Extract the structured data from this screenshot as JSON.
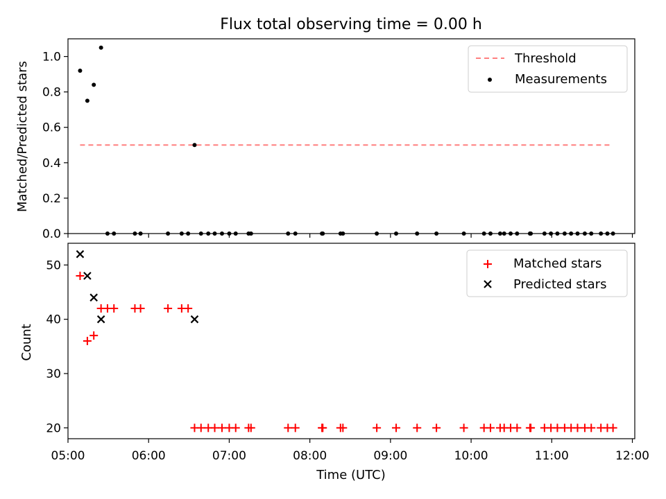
{
  "chart_data": [
    {
      "type": "scatter",
      "title": "Flux total observing time = 0.00 h",
      "xlabel": "",
      "ylabel": "Matched/Predicted stars",
      "xlim": [
        5.0,
        12.03
      ],
      "ylim": [
        0.0,
        1.1
      ],
      "yticks": [
        0.0,
        0.2,
        0.4,
        0.6,
        0.8,
        1.0
      ],
      "ytick_labels": [
        "0.0",
        "0.2",
        "0.4",
        "0.6",
        "0.8",
        "1.0"
      ],
      "threshold": {
        "name": "Threshold",
        "value": 0.5,
        "x_start": 5.15,
        "x_end": 11.75,
        "color": "#ff7f7f"
      },
      "series": [
        {
          "name": "Measurements",
          "color": "#000000",
          "x": [
            5.15,
            5.24,
            5.32,
            5.41,
            6.57,
            5.49,
            5.57,
            5.83,
            5.9,
            6.24,
            6.41,
            6.49,
            6.65,
            6.74,
            6.82,
            6.91,
            7.0,
            7.08,
            7.24,
            7.27,
            7.73,
            7.82,
            8.15,
            8.16,
            8.38,
            8.41,
            8.83,
            9.07,
            9.33,
            9.57,
            9.91,
            10.16,
            10.24,
            10.36,
            10.41,
            10.49,
            10.57,
            10.73,
            10.74,
            10.91,
            10.99,
            11.07,
            11.16,
            11.24,
            11.32,
            11.41,
            11.49,
            11.61,
            11.69,
            11.76
          ],
          "y": [
            0.92,
            0.75,
            0.84,
            1.05,
            0.5,
            0,
            0,
            0,
            0,
            0,
            0,
            0,
            0,
            0,
            0,
            0,
            0,
            0,
            0,
            0,
            0,
            0,
            0,
            0,
            0,
            0,
            0,
            0,
            0,
            0,
            0,
            0,
            0,
            0,
            0,
            0,
            0,
            0,
            0,
            0,
            0,
            0,
            0,
            0,
            0,
            0,
            0,
            0,
            0,
            0
          ]
        }
      ],
      "legend": [
        "Threshold",
        "Measurements"
      ],
      "legend_position": "top-right"
    },
    {
      "type": "scatter",
      "title": "",
      "xlabel": "Time (UTC)",
      "ylabel": "Count",
      "xlim": [
        5.0,
        12.03
      ],
      "ylim": [
        18.0,
        54.0
      ],
      "yticks": [
        20,
        30,
        40,
        50
      ],
      "ytick_labels": [
        "20",
        "30",
        "40",
        "50"
      ],
      "xticks": [
        5,
        6,
        7,
        8,
        9,
        10,
        11,
        12
      ],
      "xtick_labels": [
        "05:00",
        "06:00",
        "07:00",
        "08:00",
        "09:00",
        "10:00",
        "11:00",
        "12:00"
      ],
      "series": [
        {
          "name": "Matched stars",
          "marker": "+",
          "color": "#ff0000",
          "x": [
            5.15,
            5.24,
            5.32,
            5.41,
            5.49,
            5.57,
            5.83,
            5.9,
            6.24,
            6.41,
            6.49,
            6.57,
            6.65,
            6.74,
            6.82,
            6.91,
            7.0,
            7.08,
            7.24,
            7.27,
            7.73,
            7.82,
            8.15,
            8.16,
            8.38,
            8.41,
            8.83,
            9.07,
            9.33,
            9.57,
            9.91,
            10.16,
            10.24,
            10.36,
            10.41,
            10.49,
            10.57,
            10.73,
            10.74,
            10.91,
            10.99,
            11.07,
            11.16,
            11.24,
            11.32,
            11.41,
            11.49,
            11.61,
            11.69,
            11.76
          ],
          "y": [
            48,
            36,
            37,
            42,
            42,
            42,
            42,
            42,
            42,
            42,
            42,
            20,
            20,
            20,
            20,
            20,
            20,
            20,
            20,
            20,
            20,
            20,
            20,
            20,
            20,
            20,
            20,
            20,
            20,
            20,
            20,
            20,
            20,
            20,
            20,
            20,
            20,
            20,
            20,
            20,
            20,
            20,
            20,
            20,
            20,
            20,
            20,
            20,
            20,
            20
          ]
        },
        {
          "name": "Predicted stars",
          "marker": "x",
          "color": "#000000",
          "x": [
            5.15,
            5.24,
            5.32,
            5.41,
            6.57
          ],
          "y": [
            52,
            48,
            44,
            40,
            40
          ]
        }
      ],
      "legend": [
        "Matched stars",
        "Predicted stars"
      ],
      "legend_position": "top-right"
    }
  ]
}
